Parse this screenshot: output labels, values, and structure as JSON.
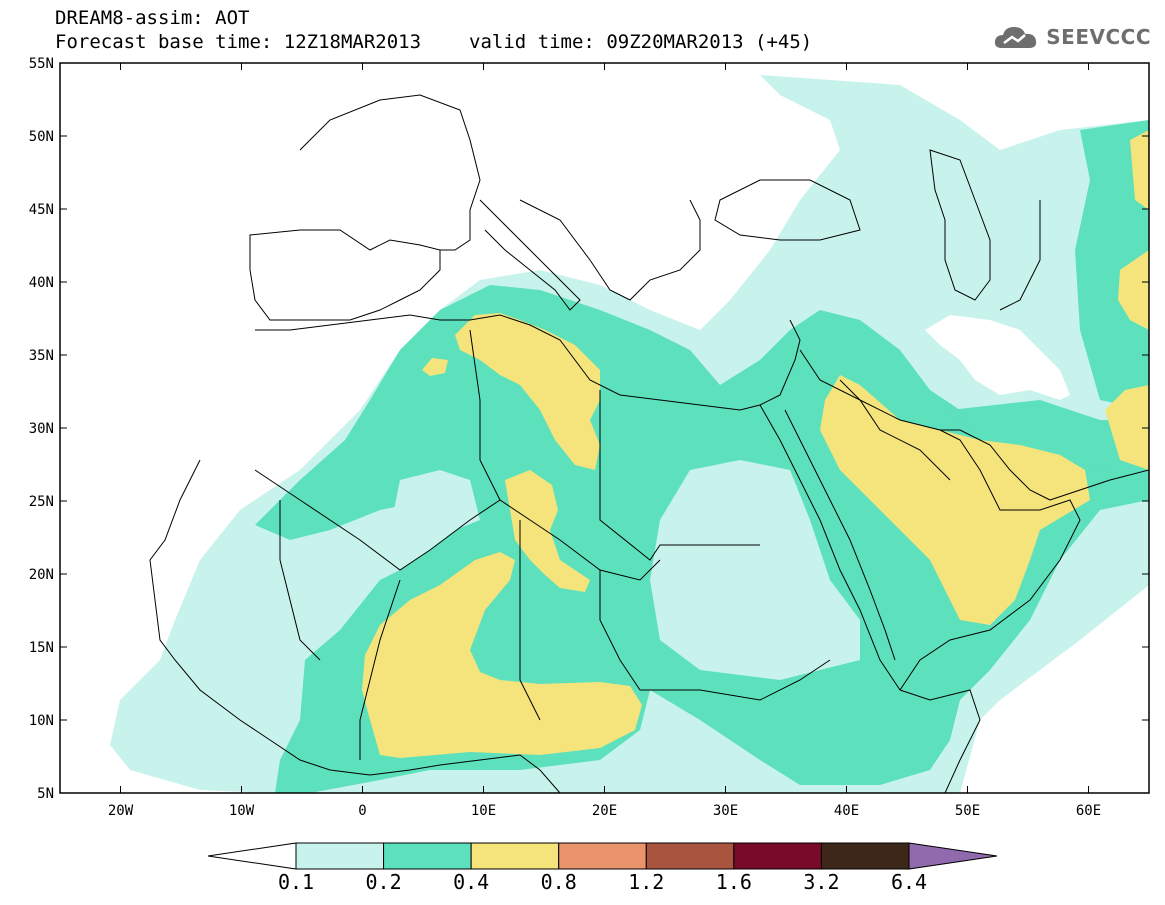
{
  "header": {
    "line1": "DREAM8-assim: AOT",
    "line2_base": "Forecast base time: 12Z18MAR2013",
    "line2_valid": "valid time: 09Z20MAR2013 (+45)"
  },
  "logo": {
    "text": "SEEVCCC",
    "icon": "cloud-icon"
  },
  "map": {
    "lat_labels": [
      "55N",
      "50N",
      "45N",
      "40N",
      "35N",
      "30N",
      "25N",
      "20N",
      "15N",
      "10N",
      "5N"
    ],
    "lon_labels": [
      "20W",
      "10W",
      "0",
      "10E",
      "20E",
      "30E",
      "40E",
      "50E",
      "60E"
    ],
    "extent": {
      "lon": [
        -25,
        65
      ],
      "lat": [
        5,
        55
      ]
    },
    "field": "Aerosol Optical Thickness",
    "regions_by_level": {
      "0.1-0.2": "broad light halo from Atlantic coast to Arabia, Caspian and N Africa interior",
      "0.2-0.4": "Sahara, Sahel, Middle East, E Africa",
      "0.4-0.8": "Tunisia-Libya, central Sahara, Chad-Nigeria, Arabian Peninsula, Iran-Pakistan"
    }
  },
  "colorbar": {
    "labels": [
      "0.1",
      "0.2",
      "0.4",
      "0.8",
      "1.2",
      "1.6",
      "3.2",
      "6.4"
    ],
    "colors": [
      "#ffffff",
      "#c8f3ec",
      "#5de0bc",
      "#f5e47c",
      "#e9946c",
      "#a9543f",
      "#7a0a2a",
      "#3c2718",
      "#8f6bad"
    ]
  },
  "colors": {
    "level1": "#c8f3ec",
    "level2": "#5de0bc",
    "level3": "#f5e47c",
    "coast": "#000000"
  }
}
